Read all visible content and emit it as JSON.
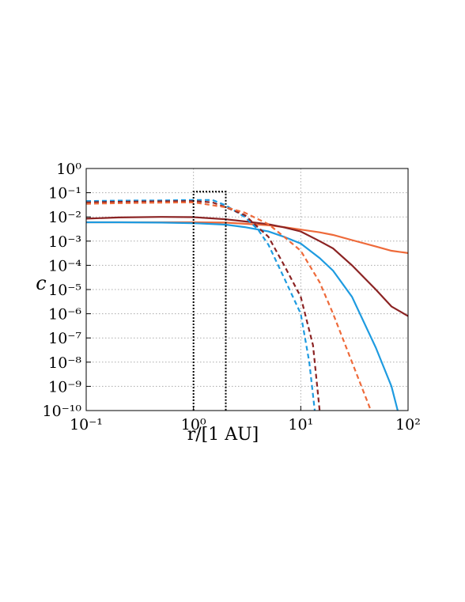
{
  "chart_data": {
    "type": "line",
    "xlabel": "r/[1 AU]",
    "ylabel": "c",
    "xscale": "log",
    "yscale": "log",
    "grid": true,
    "xlim": [
      0.1,
      100
    ],
    "ylim": [
      1e-10,
      1
    ],
    "xticks": [
      {
        "value": 0.1,
        "label": "10⁻¹"
      },
      {
        "value": 1,
        "label": "10⁰"
      },
      {
        "value": 10,
        "label": "10¹"
      },
      {
        "value": 100,
        "label": "10²"
      }
    ],
    "yticks": [
      {
        "value": 1e-10,
        "label": "10⁻¹⁰"
      },
      {
        "value": 1e-09,
        "label": "10⁻⁹"
      },
      {
        "value": 1e-08,
        "label": "10⁻⁸"
      },
      {
        "value": 1e-07,
        "label": "10⁻⁷"
      },
      {
        "value": 1e-06,
        "label": "10⁻⁶"
      },
      {
        "value": 1e-05,
        "label": "10⁻⁵"
      },
      {
        "value": 0.0001,
        "label": "10⁻⁴"
      },
      {
        "value": 0.001,
        "label": "10⁻³"
      },
      {
        "value": 0.01,
        "label": "10⁻²"
      },
      {
        "value": 0.1,
        "label": "10⁻¹"
      },
      {
        "value": 1,
        "label": "10⁰"
      }
    ],
    "series": [
      {
        "color": "#ee6a3a",
        "style": "solid",
        "x": [
          0.1,
          0.2,
          0.5,
          1,
          2,
          3,
          5,
          7,
          10,
          15,
          20,
          30,
          50,
          70,
          100
        ],
        "values": [
          0.006,
          0.006,
          0.006,
          0.006,
          0.0058,
          0.0052,
          0.0045,
          0.0038,
          0.003,
          0.0023,
          0.0018,
          0.0011,
          0.0006,
          0.0004,
          0.00032
        ]
      },
      {
        "color": "#8b2323",
        "style": "solid",
        "x": [
          0.1,
          0.2,
          0.5,
          1,
          2,
          3,
          5,
          7,
          10,
          15,
          20,
          30,
          50,
          70,
          100
        ],
        "values": [
          0.0085,
          0.0095,
          0.01,
          0.0098,
          0.008,
          0.0065,
          0.005,
          0.0037,
          0.0025,
          0.001,
          0.0005,
          0.0001,
          1e-05,
          2e-06,
          8e-07
        ]
      },
      {
        "color": "#1e9be0",
        "style": "solid",
        "x": [
          0.1,
          0.2,
          0.5,
          1,
          2,
          3,
          5,
          7,
          10,
          15,
          20,
          30,
          50,
          70,
          80
        ],
        "values": [
          0.006,
          0.006,
          0.0058,
          0.0055,
          0.0048,
          0.0038,
          0.0025,
          0.0015,
          0.0008,
          0.0002,
          6e-05,
          5e-06,
          4e-08,
          1e-09,
          1e-10
        ]
      },
      {
        "color": "#1e9be0",
        "style": "dashed",
        "x": [
          0.1,
          0.2,
          0.5,
          1,
          1.5,
          2,
          3,
          4,
          5,
          7,
          10,
          12,
          13.5
        ],
        "values": [
          0.045,
          0.047,
          0.048,
          0.05,
          0.05,
          0.03,
          0.01,
          0.003,
          0.0007,
          3e-05,
          1e-06,
          1e-08,
          1e-10
        ]
      },
      {
        "color": "#8b2323",
        "style": "dashed",
        "x": [
          0.1,
          0.2,
          0.5,
          1,
          1.5,
          2,
          3,
          5,
          7,
          10,
          13,
          15
        ],
        "values": [
          0.04,
          0.042,
          0.044,
          0.045,
          0.04,
          0.025,
          0.012,
          0.0015,
          0.0001,
          5e-06,
          5e-08,
          1e-10
        ]
      },
      {
        "color": "#ee6a3a",
        "style": "dashed",
        "x": [
          0.1,
          0.2,
          0.5,
          1,
          2,
          3,
          5,
          7,
          10,
          15,
          20,
          30,
          45
        ],
        "values": [
          0.035,
          0.037,
          0.039,
          0.04,
          0.025,
          0.015,
          0.005,
          0.0015,
          0.0004,
          2e-05,
          1e-06,
          1e-08,
          1e-10
        ]
      },
      {
        "color": "#000000",
        "style": "dotted",
        "x": [
          1,
          1,
          2,
          2
        ],
        "values": [
          1e-10,
          0.11,
          0.11,
          1e-10
        ]
      }
    ]
  }
}
